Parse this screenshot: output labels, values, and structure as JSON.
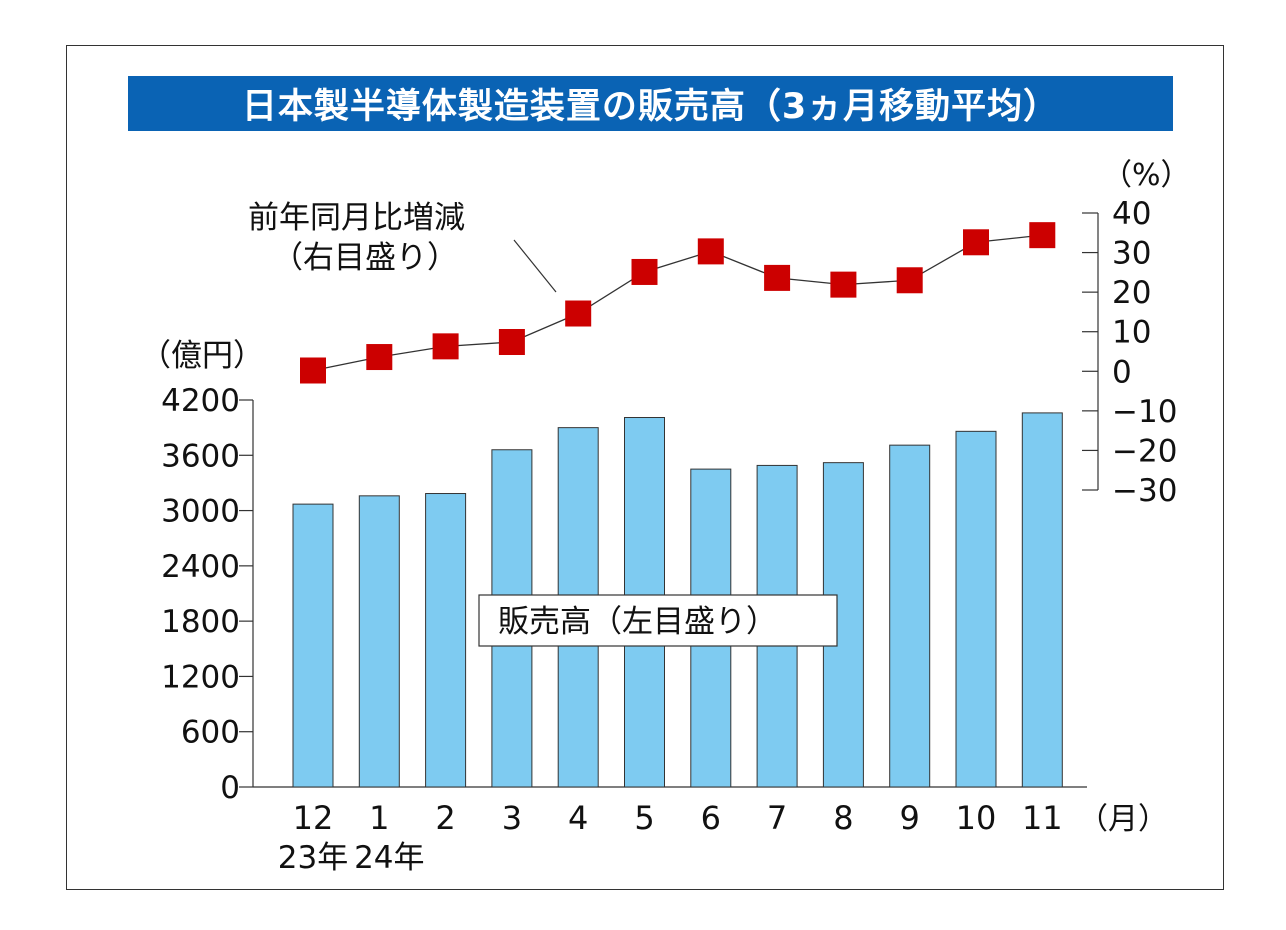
{
  "title": "日本製半導体製造装置の販売高（3ヵ月移動平均）",
  "chart_data": {
    "type": "bar",
    "categories": [
      "12",
      "1",
      "2",
      "3",
      "4",
      "5",
      "6",
      "7",
      "8",
      "9",
      "10",
      "11"
    ],
    "year_labels": [
      "23年",
      "24年",
      "",
      "",
      "",
      "",
      "",
      "",
      "",
      "",
      "",
      ""
    ],
    "xunit": "（月）",
    "left_axis": {
      "unit": "（億円）",
      "ylim": [
        0,
        4200
      ],
      "ticks": [
        0,
        600,
        1200,
        1800,
        2400,
        3000,
        3600,
        4200
      ]
    },
    "right_axis": {
      "unit": "（%）",
      "ylim": [
        -30,
        40
      ],
      "ticks": [
        -30,
        -20,
        -10,
        0,
        10,
        20,
        30,
        40
      ]
    },
    "series": [
      {
        "name": "販売高（左目盛り）",
        "type": "bar",
        "axis": "left",
        "values": [
          3070,
          3160,
          3185,
          3660,
          3900,
          4010,
          3450,
          3490,
          3520,
          3710,
          3860,
          4060
        ]
      },
      {
        "name": "前年同月比増減",
        "name_line2": "（右目盛り）",
        "type": "line",
        "axis": "right",
        "values": [
          0.2,
          3.6,
          6.3,
          7.4,
          14.6,
          25.1,
          30.3,
          23.6,
          21.9,
          23.0,
          32.6,
          34.4
        ]
      }
    ],
    "colors": {
      "bar": "#7ecbf1",
      "marker": "#cc0000",
      "title_bg": "#0a63b4"
    }
  }
}
